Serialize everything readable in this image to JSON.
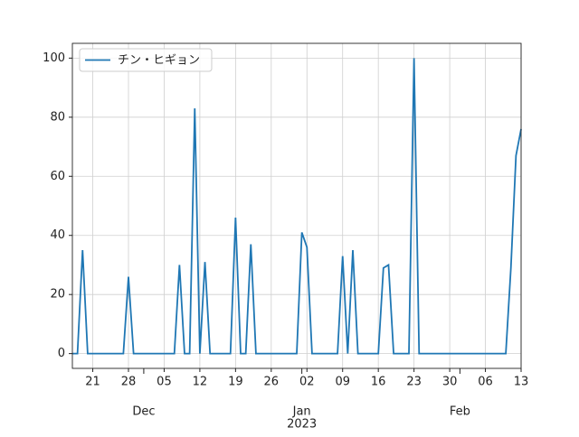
{
  "chart_data": {
    "type": "line",
    "x": [
      "2022-11-17",
      "2022-11-18",
      "2022-11-19",
      "2022-11-20",
      "2022-11-21",
      "2022-11-22",
      "2022-11-23",
      "2022-11-24",
      "2022-11-25",
      "2022-11-26",
      "2022-11-27",
      "2022-11-28",
      "2022-11-29",
      "2022-11-30",
      "2022-12-01",
      "2022-12-02",
      "2022-12-03",
      "2022-12-04",
      "2022-12-05",
      "2022-12-06",
      "2022-12-07",
      "2022-12-08",
      "2022-12-09",
      "2022-12-10",
      "2022-12-11",
      "2022-12-12",
      "2022-12-13",
      "2022-12-14",
      "2022-12-15",
      "2022-12-16",
      "2022-12-17",
      "2022-12-18",
      "2022-12-19",
      "2022-12-20",
      "2022-12-21",
      "2022-12-22",
      "2022-12-23",
      "2022-12-24",
      "2022-12-25",
      "2022-12-26",
      "2022-12-27",
      "2022-12-28",
      "2022-12-29",
      "2022-12-30",
      "2022-12-31",
      "2023-01-01",
      "2023-01-02",
      "2023-01-03",
      "2023-01-04",
      "2023-01-05",
      "2023-01-06",
      "2023-01-07",
      "2023-01-08",
      "2023-01-09",
      "2023-01-10",
      "2023-01-11",
      "2023-01-12",
      "2023-01-13",
      "2023-01-14",
      "2023-01-15",
      "2023-01-16",
      "2023-01-17",
      "2023-01-18",
      "2023-01-19",
      "2023-01-20",
      "2023-01-21",
      "2023-01-22",
      "2023-01-23",
      "2023-01-24",
      "2023-01-25",
      "2023-01-26",
      "2023-01-27",
      "2023-01-28",
      "2023-01-29",
      "2023-01-30",
      "2023-01-31",
      "2023-02-01",
      "2023-02-02",
      "2023-02-03",
      "2023-02-04",
      "2023-02-05",
      "2023-02-06",
      "2023-02-07",
      "2023-02-08",
      "2023-02-09",
      "2023-02-10",
      "2023-02-11",
      "2023-02-12",
      "2023-02-13"
    ],
    "series": [
      {
        "name": "チン・ヒギョン",
        "color": "#1f77b4",
        "values": [
          0,
          0,
          35,
          0,
          0,
          0,
          0,
          0,
          0,
          0,
          0,
          26,
          0,
          0,
          0,
          0,
          0,
          0,
          0,
          0,
          0,
          30,
          0,
          0,
          83,
          0,
          31,
          0,
          0,
          0,
          0,
          0,
          46,
          0,
          0,
          37,
          0,
          0,
          0,
          0,
          0,
          0,
          0,
          0,
          0,
          41,
          36,
          0,
          0,
          0,
          0,
          0,
          0,
          33,
          0,
          35,
          0,
          0,
          0,
          0,
          0,
          29,
          30,
          0,
          0,
          0,
          0,
          100,
          0,
          0,
          0,
          0,
          0,
          0,
          0,
          0,
          0,
          0,
          0,
          0,
          0,
          0,
          0,
          0,
          0,
          0,
          29,
          67,
          76
        ]
      }
    ],
    "xlim": [
      "2022-11-17",
      "2023-02-13"
    ],
    "xticks": [
      {
        "value": "2022-11-21",
        "label": "21"
      },
      {
        "value": "2022-11-28",
        "label": "28"
      },
      {
        "value": "2022-12-05",
        "label": "05"
      },
      {
        "value": "2022-12-12",
        "label": "12"
      },
      {
        "value": "2022-12-19",
        "label": "19"
      },
      {
        "value": "2022-12-26",
        "label": "26"
      },
      {
        "value": "2023-01-02",
        "label": "02"
      },
      {
        "value": "2023-01-09",
        "label": "09"
      },
      {
        "value": "2023-01-16",
        "label": "16"
      },
      {
        "value": "2023-01-23",
        "label": "23"
      },
      {
        "value": "2023-01-30",
        "label": "30"
      },
      {
        "value": "2023-02-06",
        "label": "06"
      },
      {
        "value": "2023-02-13",
        "label": "13"
      }
    ],
    "xmonthticks": [
      {
        "value": "2022-12-01",
        "label": "Dec"
      },
      {
        "value": "2023-01-01",
        "label": "Jan"
      },
      {
        "value": "2023-02-01",
        "label": "Feb"
      }
    ],
    "xyearlabel": {
      "value": "2023-01-01",
      "label": "2023"
    },
    "ylim": [
      -5,
      105
    ],
    "yticks": [
      0,
      20,
      40,
      60,
      80,
      100
    ],
    "grid": true,
    "legend": "upper left"
  }
}
